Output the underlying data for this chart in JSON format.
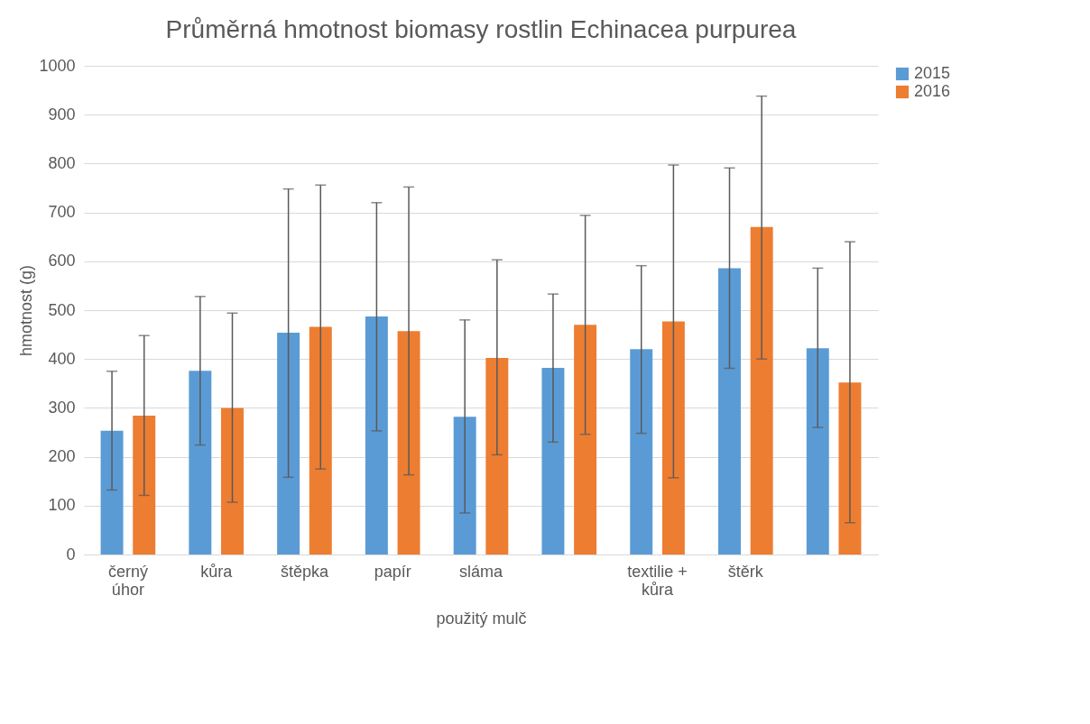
{
  "chart_data": {
    "type": "bar",
    "title": "Průměrná hmotnost biomasy rostlin Echinacea purpurea",
    "xlabel": "použitý mulč",
    "ylabel": "hmotnost (g)",
    "categories": [
      "černý úhor",
      "kůra",
      "štěpka",
      "papír",
      "sláma",
      null,
      "textilie + kůra",
      "štěrk",
      null
    ],
    "series": [
      {
        "name": "2015",
        "color": "#5b9bd5",
        "values": [
          253,
          376,
          454,
          487,
          282,
          382,
          420,
          586,
          422
        ],
        "errors": [
          [
            132,
            375
          ],
          [
            224,
            528
          ],
          [
            158,
            748
          ],
          [
            253,
            720
          ],
          [
            85,
            480
          ],
          [
            230,
            533
          ],
          [
            248,
            591
          ],
          [
            381,
            791
          ],
          [
            260,
            586
          ]
        ]
      },
      {
        "name": "2016",
        "color": "#ed7d31",
        "values": [
          284,
          300,
          466,
          457,
          402,
          470,
          477,
          670,
          352
        ],
        "errors": [
          [
            121,
            448
          ],
          [
            107,
            494
          ],
          [
            175,
            756
          ],
          [
            163,
            752
          ],
          [
            204,
            603
          ],
          [
            246,
            694
          ],
          [
            157,
            797
          ],
          [
            400,
            938
          ],
          [
            65,
            640
          ]
        ]
      }
    ],
    "ylim": [
      0,
      1000
    ],
    "yticks": [
      0,
      100,
      200,
      300,
      400,
      500,
      600,
      700,
      800,
      900,
      1000
    ],
    "grid": "y",
    "legend": "right"
  }
}
